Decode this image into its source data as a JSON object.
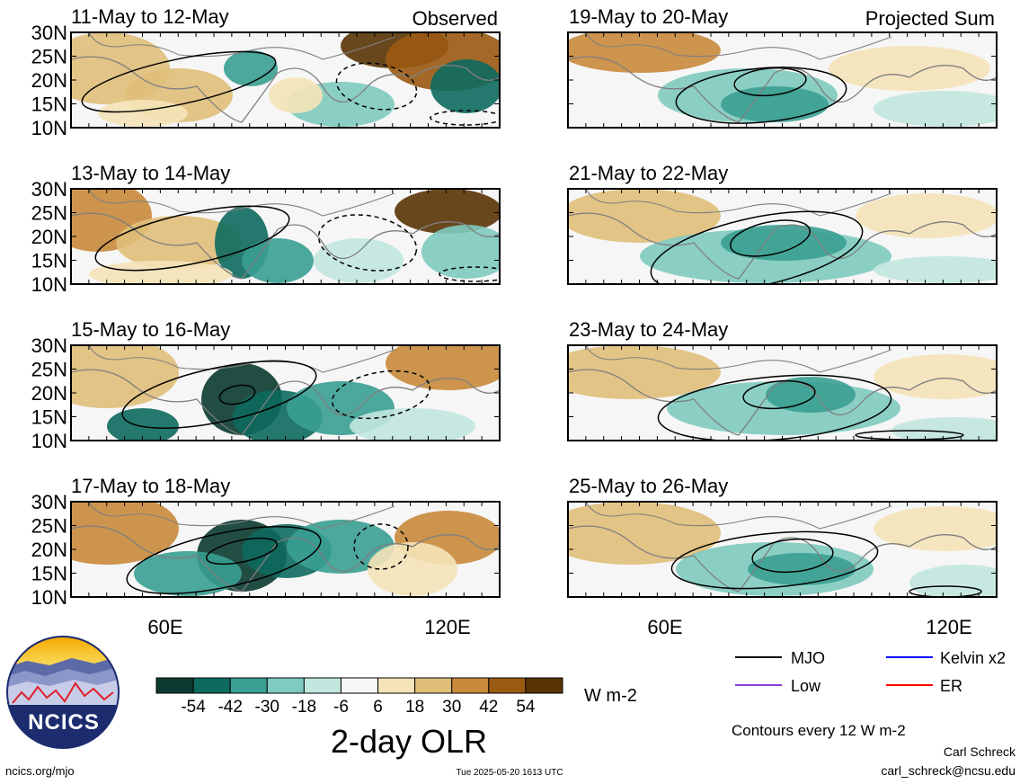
{
  "panels": [
    {
      "date": "11-May to 12-May",
      "corner": "Observed",
      "lat_labels": [
        "30N",
        "25N",
        "20N",
        "15N",
        "10N"
      ],
      "kind": "observed"
    },
    {
      "date": "19-May to 20-May",
      "corner": "Projected Sum",
      "lat_labels": [],
      "kind": "projected"
    },
    {
      "date": "13-May to 14-May",
      "corner": "",
      "lat_labels": [
        "30N",
        "25N",
        "20N",
        "15N",
        "10N"
      ],
      "kind": "observed"
    },
    {
      "date": "21-May to 22-May",
      "corner": "",
      "lat_labels": [],
      "kind": "projected"
    },
    {
      "date": "15-May to 16-May",
      "corner": "",
      "lat_labels": [
        "30N",
        "25N",
        "20N",
        "15N",
        "10N"
      ],
      "kind": "observed"
    },
    {
      "date": "23-May to 24-May",
      "corner": "",
      "lat_labels": [],
      "kind": "projected"
    },
    {
      "date": "17-May to 18-May",
      "corner": "",
      "lat_labels": [
        "30N",
        "25N",
        "20N",
        "15N",
        "10N"
      ],
      "kind": "observed"
    },
    {
      "date": "25-May to 26-May",
      "corner": "",
      "lat_labels": [],
      "kind": "projected"
    }
  ],
  "lon_labels": [
    "60E",
    "120E"
  ],
  "colorbar": {
    "title": "2-day OLR",
    "units": "W m-2",
    "tick_labels": [
      "-54",
      "-42",
      "-30",
      "-18",
      "-6",
      "6",
      "18",
      "30",
      "42",
      "54"
    ],
    "colors": [
      "#0b3b30",
      "#0d6a5e",
      "#3a9e92",
      "#7fcbbf",
      "#c2e7df",
      "#f6f6f6",
      "#f5e3b8",
      "#e0bf7a",
      "#c98a3c",
      "#9b5a12",
      "#5a3406"
    ]
  },
  "legend": {
    "items": [
      {
        "label": "MJO",
        "color": "#000000"
      },
      {
        "label": "Kelvin x2",
        "color": "#0000ff"
      },
      {
        "label": "Low",
        "color": "#8a3fd1"
      },
      {
        "label": "ER",
        "color": "#ff0000"
      }
    ],
    "contour_note": "Contours every 12 W m-2"
  },
  "logo": {
    "text": "NCICS"
  },
  "footer": {
    "left": "ncics.org/mjo",
    "center": "Tue 2025-05-20 1613 UTC",
    "author": "Carl Schreck",
    "email": "carl_schreck@ncsu.edu"
  }
}
